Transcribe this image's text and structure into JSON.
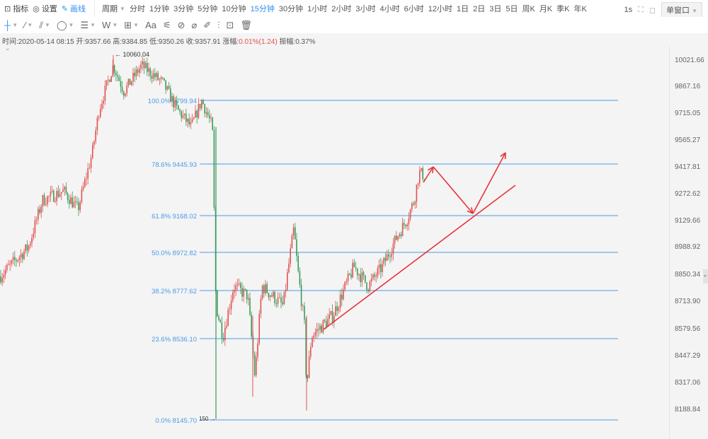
{
  "toolbar": {
    "indicators": "指标",
    "settings": "设置",
    "draw": "画线",
    "period": "周期",
    "periods": [
      "分时",
      "1分钟",
      "3分钟",
      "5分钟",
      "10分钟",
      "15分钟",
      "30分钟",
      "1小时",
      "2小时",
      "3小时",
      "4小时",
      "6小时",
      "12小时",
      "1日",
      "2日",
      "3日",
      "5日",
      "周K",
      "月K",
      "季K",
      "年K"
    ],
    "active_period": "15分钟",
    "refresh": "1s",
    "window_mode": "单窗口"
  },
  "draw_tools": [
    "crosshair-icon",
    "line-icon",
    "parallel-line-icon",
    "ellipse-icon",
    "horizontal-lines-icon",
    "w-pattern-icon",
    "measure-icon",
    "text-icon",
    "fib-icon",
    "link-icon",
    "ruler-icon",
    "brush-icon",
    "candles-icon",
    "lock-icon",
    "trash-icon"
  ],
  "text_tool": "Aa",
  "w_tool": "W",
  "info": {
    "time": "时间:2020-05-14 08:15",
    "open": "开:9357.66",
    "high": "高:9384.85",
    "low": "低:9350.26",
    "close": "收:9357.91",
    "change_label": "涨幅:",
    "change": "0.01%(1.24)",
    "amp": "振幅:0.37%"
  },
  "chart_data": {
    "type": "candlestick",
    "symbol_interval": "15分钟",
    "y_scale": "log",
    "price_axis": [
      "10021.66",
      "9867.16",
      "9715.05",
      "9565.27",
      "9417.81",
      "9272.62",
      "9129.66",
      "8988.92",
      "8850.34",
      "8713.90",
      "8579.56",
      "8447.29",
      "8317.06",
      "8188.84"
    ],
    "fib_levels": [
      {
        "label": "100.0% 9799.94",
        "price": 9799.94
      },
      {
        "label": "78.6% 9445.93",
        "price": 9445.93
      },
      {
        "label": "61.8% 9168.02",
        "price": 9168.02
      },
      {
        "label": "50.0% 8972.82",
        "price": 8972.82
      },
      {
        "label": "38.2% 8777.62",
        "price": 8777.62
      },
      {
        "label": "23.6% 8536.10",
        "price": 8536.1
      },
      {
        "label": "0.0% 8145.70",
        "price": 8145.7
      }
    ],
    "high_marker": "10060.04",
    "low_marker": "150",
    "approx_price_path": [
      8850,
      9000,
      9250,
      9300,
      9200,
      9500,
      9750,
      10000,
      9850,
      10000,
      9900,
      9750,
      9650,
      9800,
      9650,
      8700,
      8550,
      8800,
      8750,
      8350,
      8800,
      8700,
      9100,
      8900,
      8600,
      8300,
      8550,
      8650,
      8900,
      8800,
      8900,
      9050,
      9150,
      9250,
      9400,
      9380
    ],
    "colors": {
      "up": "#e0524e",
      "down": "#3a9a5b",
      "fib": "#4a9be8",
      "annotation": "#e8333a"
    }
  }
}
